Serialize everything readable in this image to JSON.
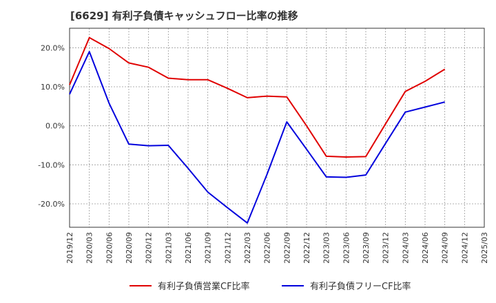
{
  "chart_data": {
    "type": "line",
    "title": "[6629]  有利子負債キャッシュフロー比率の推移",
    "x": [
      "2019/12",
      "2020/03",
      "2020/06",
      "2020/09",
      "2020/12",
      "2021/03",
      "2021/06",
      "2021/09",
      "2021/12",
      "2022/03",
      "2022/06",
      "2022/09",
      "2022/12",
      "2023/03",
      "2023/06",
      "2023/09",
      "2023/12",
      "2024/03",
      "2024/06",
      "2024/09",
      "2024/12",
      "2025/03"
    ],
    "ylim": [
      -26,
      25
    ],
    "yticks": [
      20,
      10,
      0,
      -10,
      -20
    ],
    "ytick_labels": [
      "20.0%",
      "10.0%",
      "0.0%",
      "-10.0%",
      "-20.0%"
    ],
    "grid": true,
    "legend_position": "bottom",
    "series": [
      {
        "name": "有利子負債営業CF比率",
        "color": "#e00000",
        "values": [
          10.5,
          22.6,
          19.8,
          16.1,
          15.0,
          12.2,
          11.8,
          11.8,
          9.6,
          7.2,
          7.6,
          7.4,
          0.0,
          -7.8,
          -8.0,
          -7.9,
          0.5,
          8.8,
          11.4,
          14.5,
          null,
          null
        ]
      },
      {
        "name": "有利子負債フリーCF比率",
        "color": "#0000dd",
        "values": [
          8.1,
          19.0,
          5.8,
          -4.7,
          -5.1,
          -5.0,
          -10.9,
          -17.0,
          -21.0,
          -24.9,
          -12.4,
          1.0,
          -6.0,
          -13.1,
          -13.2,
          -12.6,
          -4.5,
          3.5,
          4.8,
          6.1,
          null,
          null
        ]
      }
    ]
  }
}
